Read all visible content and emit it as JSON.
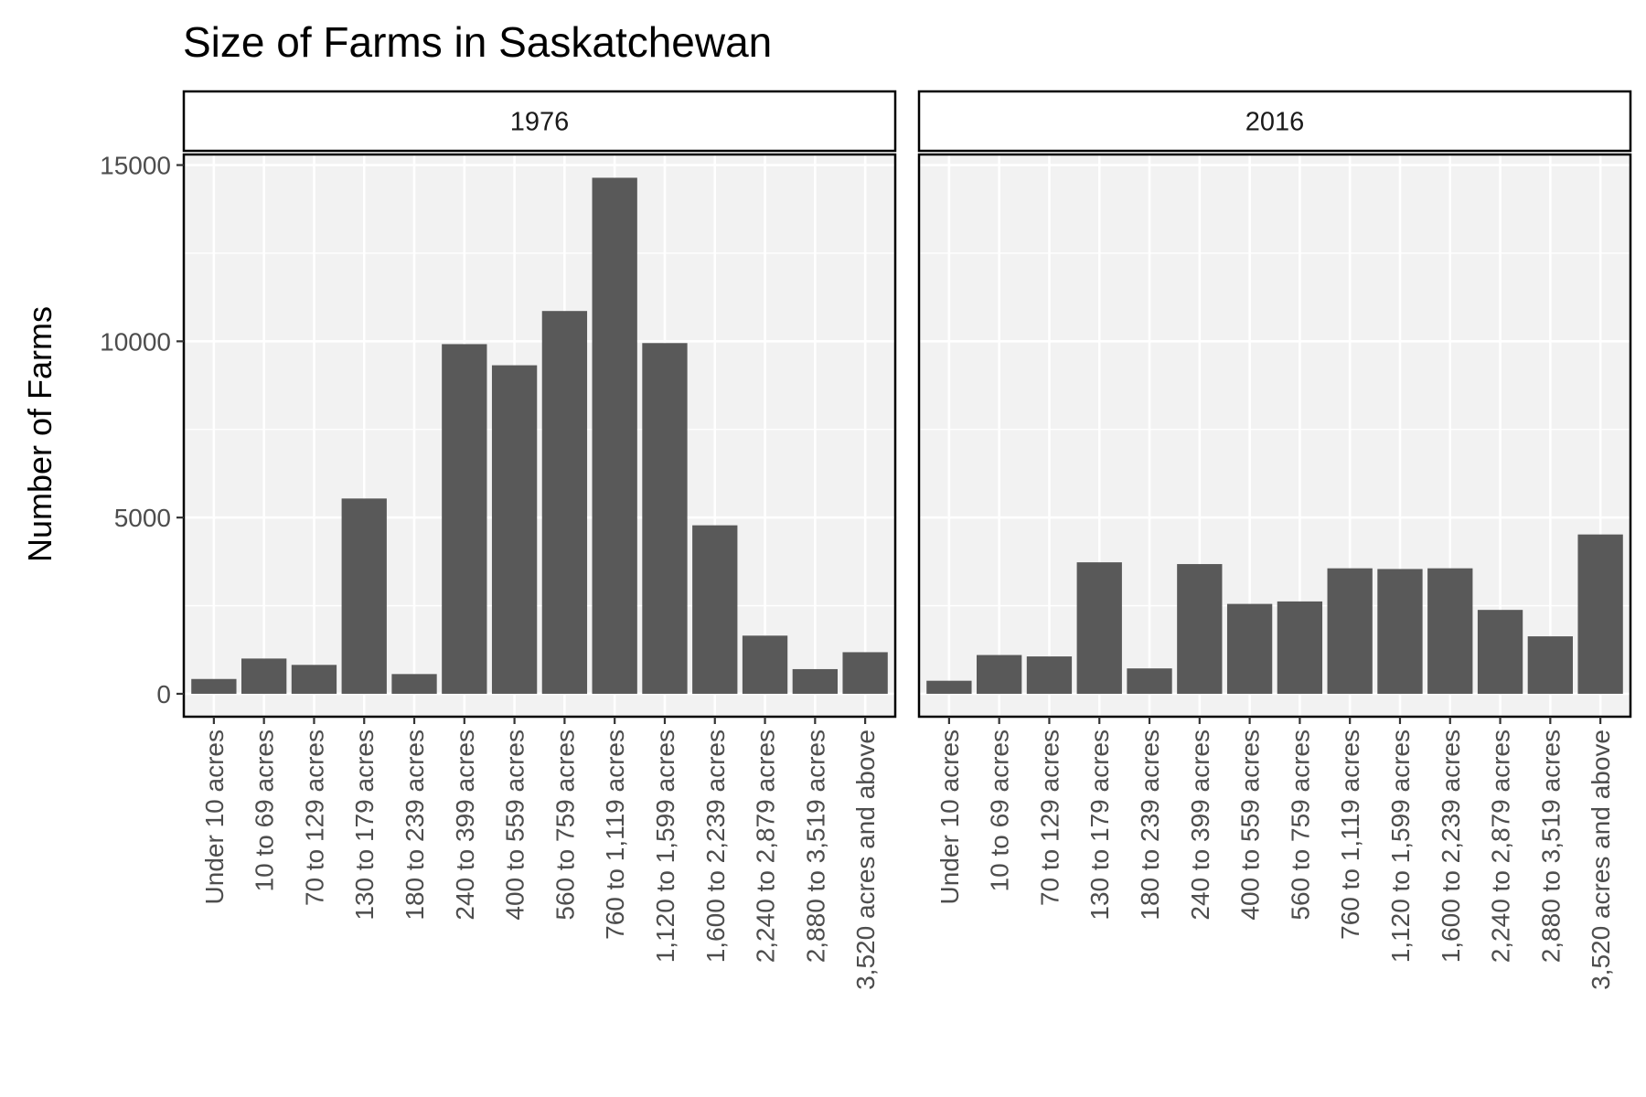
{
  "chart_data": {
    "type": "bar",
    "title": "Size of Farms in Saskatchewan",
    "xlabel": "",
    "ylabel": "Number of Farms",
    "ylim": [
      -650,
      15300
    ],
    "yticks": [
      0,
      5000,
      10000,
      15000
    ],
    "grid": true,
    "categories": [
      "Under 10 acres",
      "10 to 69 acres",
      "70 to 129 acres",
      "130 to 179 acres",
      "180 to 239 acres",
      "240 to 399 acres",
      "400 to 559 acres",
      "560 to 759 acres",
      "760 to 1,119 acres",
      "1,120 to 1,599 acres",
      "1,600 to 2,239 acres",
      "2,240 to 2,879 acres",
      "2,880 to 3,519 acres",
      "3,520 acres and above"
    ],
    "panels": [
      {
        "label": "1976",
        "values": [
          420,
          1000,
          820,
          5540,
          560,
          9920,
          9320,
          10860,
          14640,
          9950,
          4780,
          1650,
          700,
          1180
        ]
      },
      {
        "label": "2016",
        "values": [
          370,
          1100,
          1060,
          3730,
          720,
          3680,
          2550,
          2620,
          3560,
          3540,
          3560,
          2380,
          1630,
          4520
        ]
      }
    ],
    "colors": {
      "bar": "#595959",
      "panel_background": "#f2f2f2",
      "grid": "#ffffff",
      "border": "#000000",
      "strip_background": "#ffffff"
    }
  }
}
